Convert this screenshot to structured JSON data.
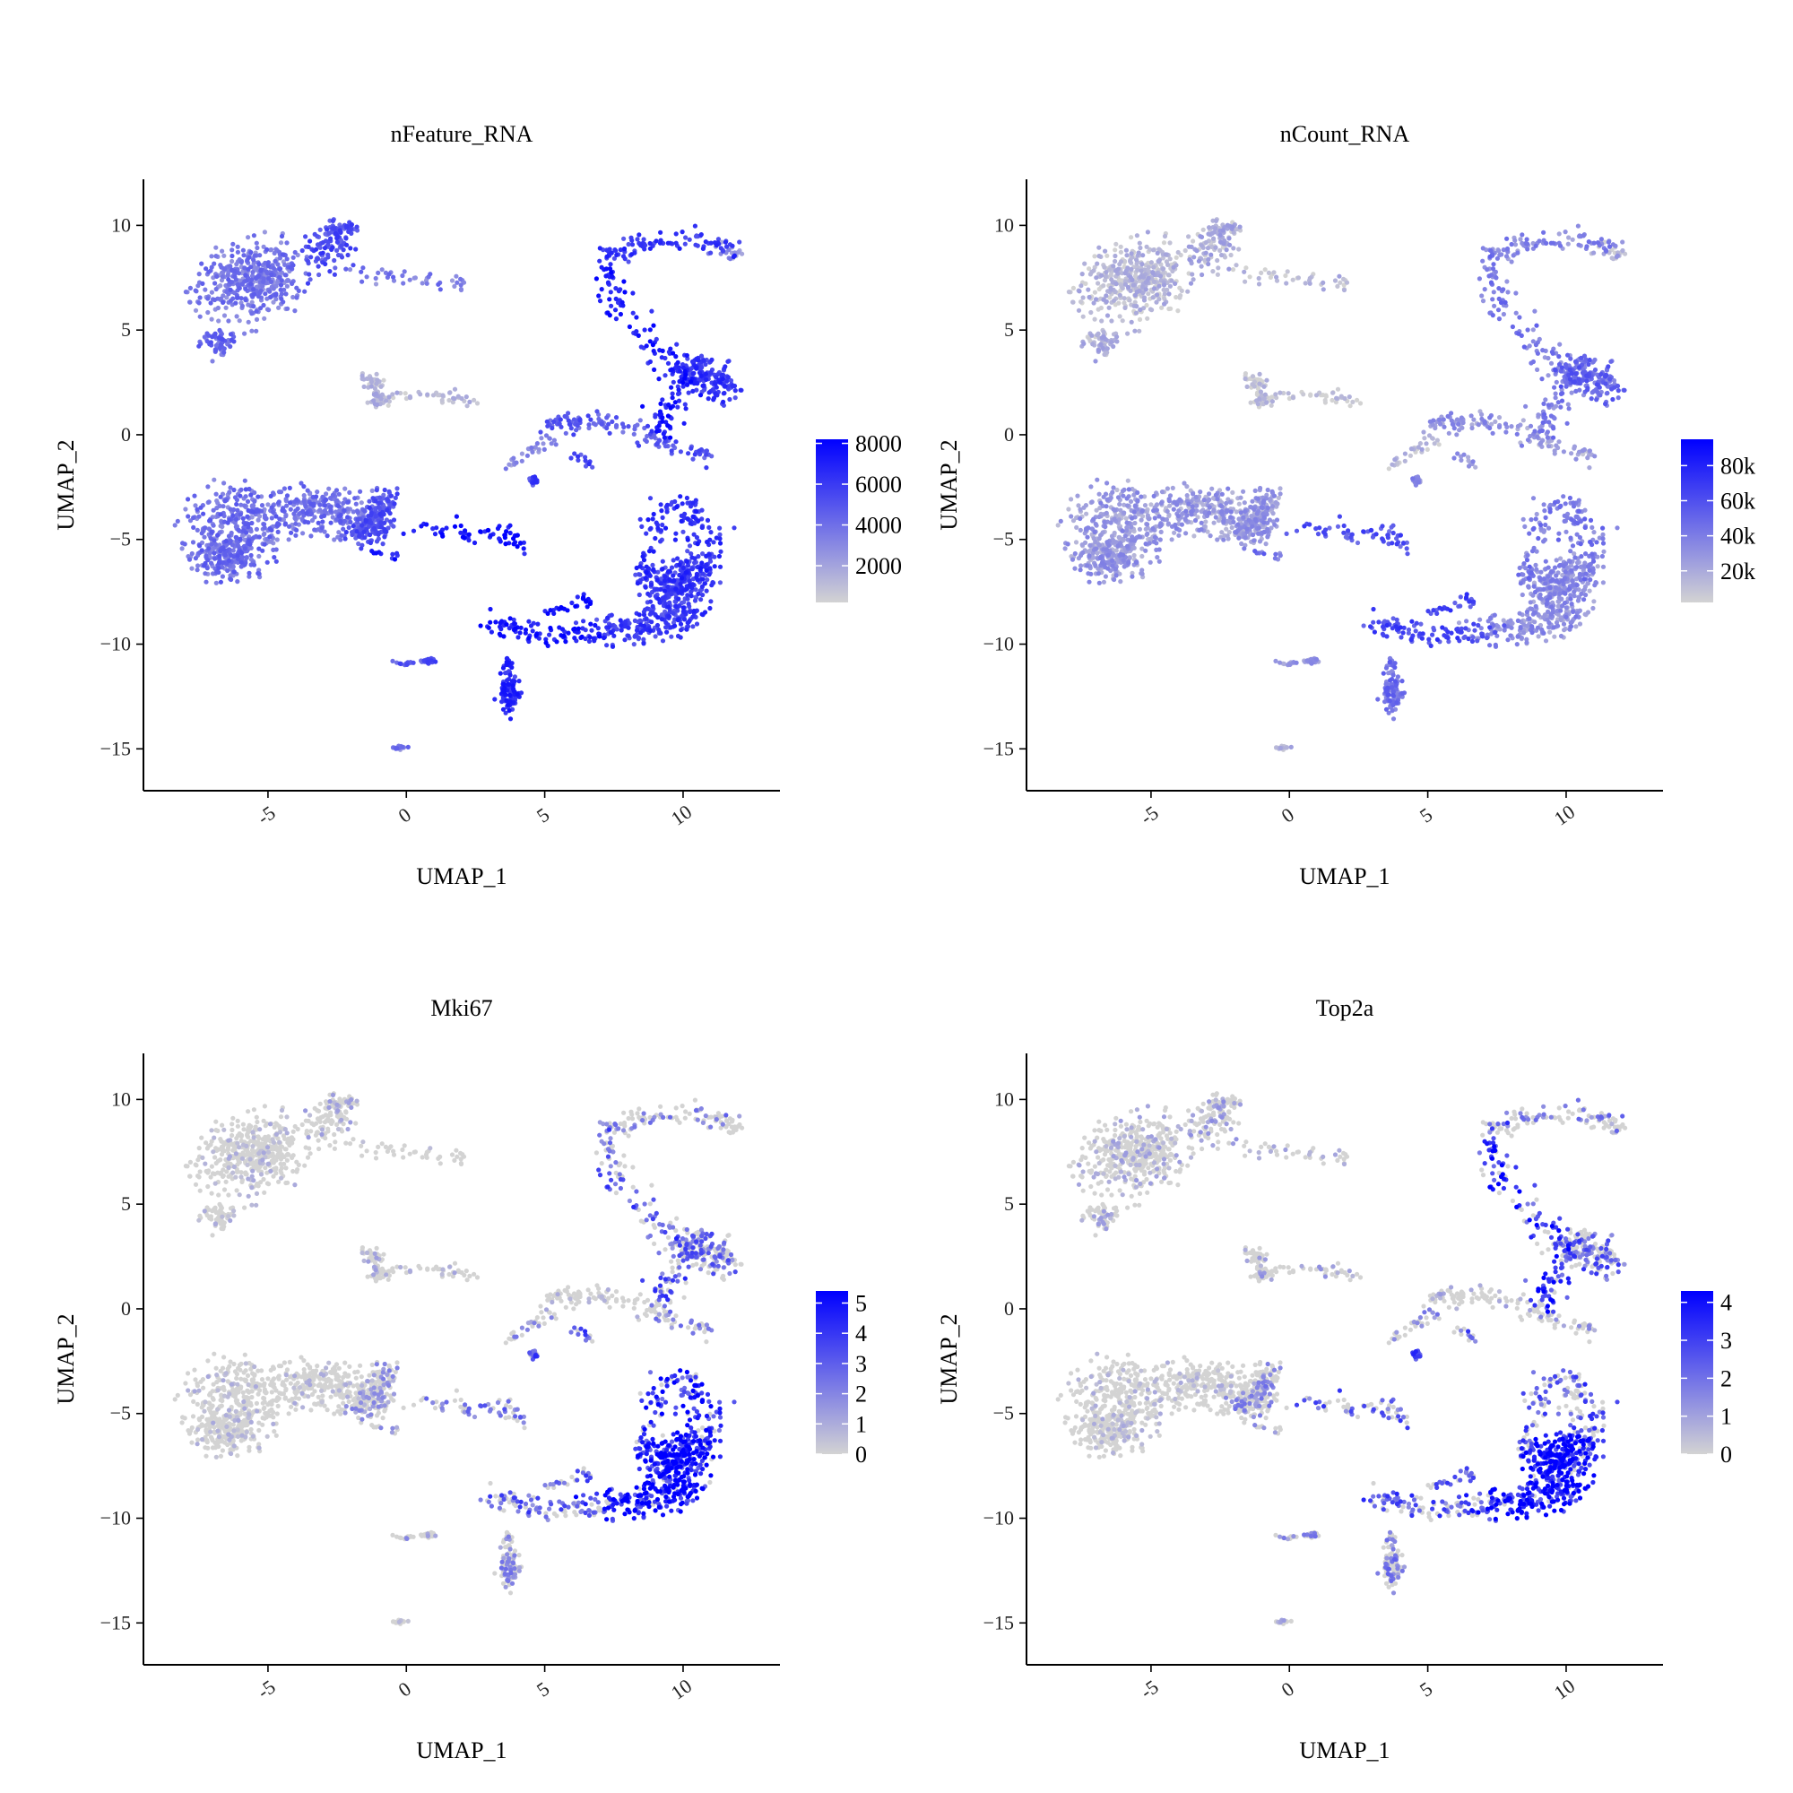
{
  "figure": {
    "background": "#ffffff",
    "low_color": "#d3d3d3",
    "high_color": "#0000ff"
  },
  "chart_data": [
    {
      "type": "scatter",
      "title": "nFeature_RNA",
      "xlabel": "UMAP_1",
      "ylabel": "UMAP_2",
      "xlim": [
        -9.5,
        13.5
      ],
      "ylim": [
        -17,
        12.2
      ],
      "xticks": [
        -5,
        0,
        5,
        10
      ],
      "yticks": [
        10,
        5,
        0,
        -5,
        -10,
        -15
      ],
      "xtick_labels": [
        "-5",
        "0",
        "5",
        "10"
      ],
      "ytick_labels": [
        "10",
        "5",
        "0",
        "−5",
        "−10",
        "−15"
      ],
      "color_scale": {
        "min": 200,
        "max": 8200,
        "ticks": [
          2000,
          4000,
          6000,
          8000
        ],
        "tick_labels": [
          "2000",
          "4000",
          "6000",
          "8000"
        ]
      },
      "cluster_levels": {
        "A": 0.42,
        "B": 0.62,
        "C": 0.5,
        "D": 0.1,
        "E": 0.4,
        "F": 0.45,
        "G": 0.6,
        "H": 0.82,
        "I": 0.9,
        "J": 0.72,
        "K": 0.85,
        "L": 0.3,
        "M": 0.72,
        "N": 0.55,
        "O": 0.3,
        "P": 0.65,
        "Q": 0.58,
        "R": 0.88,
        "S": 0.78,
        "T": 0.7,
        "U": 0.75
      }
    },
    {
      "type": "scatter",
      "title": "nCount_RNA",
      "xlabel": "UMAP_1",
      "ylabel": "UMAP_2",
      "xlim": [
        -9.5,
        13.5
      ],
      "ylim": [
        -17,
        12.2
      ],
      "xticks": [
        -5,
        0,
        5,
        10
      ],
      "yticks": [
        10,
        5,
        0,
        -5,
        -10,
        -15
      ],
      "xtick_labels": [
        "-5",
        "0",
        "5",
        "10"
      ],
      "ytick_labels": [
        "10",
        "5",
        "0",
        "−5",
        "−10",
        "−15"
      ],
      "color_scale": {
        "min": 2000,
        "max": 95000,
        "ticks": [
          20000,
          40000,
          60000,
          80000
        ],
        "tick_labels": [
          "20k",
          "40k",
          "60k",
          "80k"
        ]
      },
      "cluster_levels": {
        "A": 0.1,
        "B": 0.15,
        "C": 0.14,
        "D": 0.04,
        "E": 0.1,
        "F": 0.25,
        "G": 0.25,
        "H": 0.45,
        "I": 0.6,
        "J": 0.35,
        "K": 0.4,
        "L": 0.08,
        "M": 0.5,
        "N": 0.28,
        "O": 0.1,
        "P": 0.3,
        "Q": 0.18,
        "R": 0.65,
        "S": 0.45,
        "T": 0.3,
        "U": 0.4
      }
    },
    {
      "type": "scatter",
      "title": "Mki67",
      "xlabel": "UMAP_1",
      "ylabel": "UMAP_2",
      "xlim": [
        -9.5,
        13.5
      ],
      "ylim": [
        -17,
        12.2
      ],
      "xticks": [
        -5,
        0,
        5,
        10
      ],
      "yticks": [
        10,
        5,
        0,
        -5,
        -10,
        -15
      ],
      "xtick_labels": [
        "-5",
        "0",
        "5",
        "10"
      ],
      "ytick_labels": [
        "10",
        "5",
        "0",
        "−5",
        "−10",
        "−15"
      ],
      "color_scale": {
        "min": 0,
        "max": 5.4,
        "ticks": [
          0,
          1,
          2,
          3,
          4,
          5
        ],
        "tick_labels": [
          "0",
          "1",
          "2",
          "3",
          "4",
          "5"
        ]
      },
      "cluster_levels": {
        "A": 0.15,
        "B": 0.2,
        "C": 0.15,
        "D": 0.2,
        "E": 0.12,
        "F": 0.15,
        "G": 0.3,
        "H": 0.35,
        "I": 0.45,
        "J": 0.4,
        "K": 0.6,
        "L": 0.12,
        "M": 0.5,
        "N": 0.15,
        "O": 0.35,
        "P": 0.6,
        "Q": 0.4,
        "R": 0.55,
        "S": 0.35,
        "T": 0.95,
        "U": 0.85
      }
    },
    {
      "type": "scatter",
      "title": "Top2a",
      "xlabel": "UMAP_1",
      "ylabel": "UMAP_2",
      "xlim": [
        -9.5,
        13.5
      ],
      "ylim": [
        -17,
        12.2
      ],
      "xticks": [
        -5,
        0,
        5,
        10
      ],
      "yticks": [
        10,
        5,
        0,
        -5,
        -10,
        -15
      ],
      "xtick_labels": [
        "-5",
        "0",
        "5",
        "10"
      ],
      "ytick_labels": [
        "10",
        "5",
        "0",
        "−5",
        "−10",
        "−15"
      ],
      "color_scale": {
        "min": 0,
        "max": 4.3,
        "ticks": [
          0,
          1,
          2,
          3,
          4
        ],
        "tick_labels": [
          "0",
          "1",
          "2",
          "3",
          "4"
        ]
      },
      "cluster_levels": {
        "A": 0.2,
        "B": 0.25,
        "C": 0.2,
        "D": 0.25,
        "E": 0.2,
        "F": 0.15,
        "G": 0.35,
        "H": 0.4,
        "I": 0.55,
        "J": 0.4,
        "K": 0.8,
        "L": 0.15,
        "M": 0.55,
        "N": 0.2,
        "O": 0.35,
        "P": 0.6,
        "Q": 0.3,
        "R": 0.6,
        "S": 0.4,
        "T": 0.95,
        "U": 0.6
      }
    }
  ]
}
